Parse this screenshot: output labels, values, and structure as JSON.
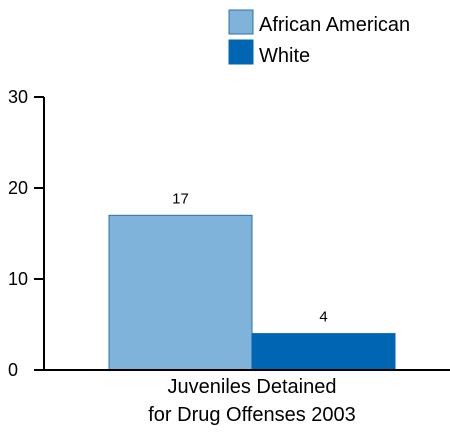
{
  "chart_data": {
    "type": "bar",
    "categories": [
      "Juveniles Detained for Drug Offenses 2003"
    ],
    "category_lines": [
      "Juveniles Detained",
      "for Drug Offenses 2003"
    ],
    "series": [
      {
        "name": "African American",
        "values": [
          17
        ],
        "color": "#7fb3da",
        "border_color": "#2f6fa8"
      },
      {
        "name": "White",
        "values": [
          4
        ],
        "color": "#0066b3",
        "border_color": "#0066b3"
      }
    ],
    "value_labels": [
      "17",
      "4"
    ],
    "yticks": [
      0,
      10,
      20,
      30
    ],
    "ylim": [
      0,
      30
    ],
    "legend_position": "top-right",
    "grid": false
  }
}
